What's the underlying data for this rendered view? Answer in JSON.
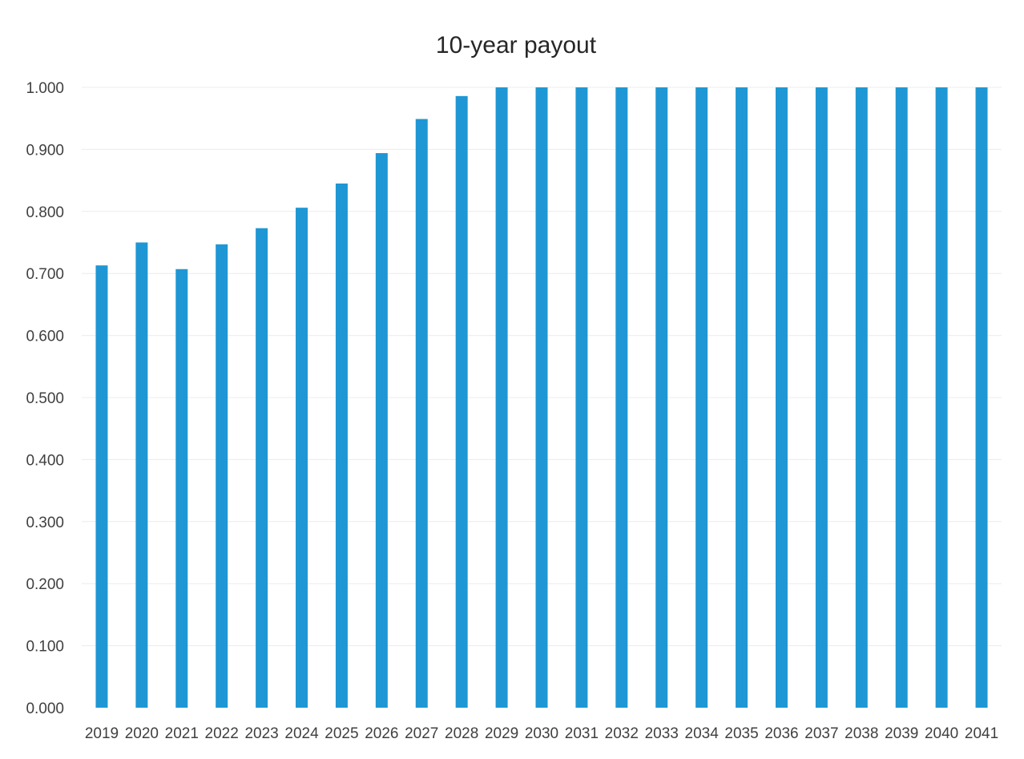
{
  "chart_data": {
    "type": "bar",
    "title": "10-year payout",
    "xlabel": "",
    "ylabel": "",
    "categories": [
      "2019",
      "2020",
      "2021",
      "2022",
      "2023",
      "2024",
      "2025",
      "2026",
      "2027",
      "2028",
      "2029",
      "2030",
      "2031",
      "2032",
      "2033",
      "2034",
      "2035",
      "2036",
      "2037",
      "2038",
      "2039",
      "2040",
      "2041"
    ],
    "values": [
      0.713,
      0.75,
      0.707,
      0.747,
      0.773,
      0.806,
      0.845,
      0.894,
      0.949,
      0.986,
      1.0,
      1.0,
      1.0,
      1.0,
      1.0,
      1.0,
      1.0,
      1.0,
      1.0,
      1.0,
      1.0,
      1.0,
      1.0
    ],
    "ylim": [
      0,
      1.0
    ],
    "yticks": [
      "0.000",
      "0.100",
      "0.200",
      "0.300",
      "0.400",
      "0.500",
      "0.600",
      "0.700",
      "0.800",
      "0.900",
      "1.000"
    ],
    "grid": true,
    "legend": "none",
    "colors": {
      "bar": "#1f97d4",
      "grid": "#ececec",
      "text": "#404040"
    }
  }
}
